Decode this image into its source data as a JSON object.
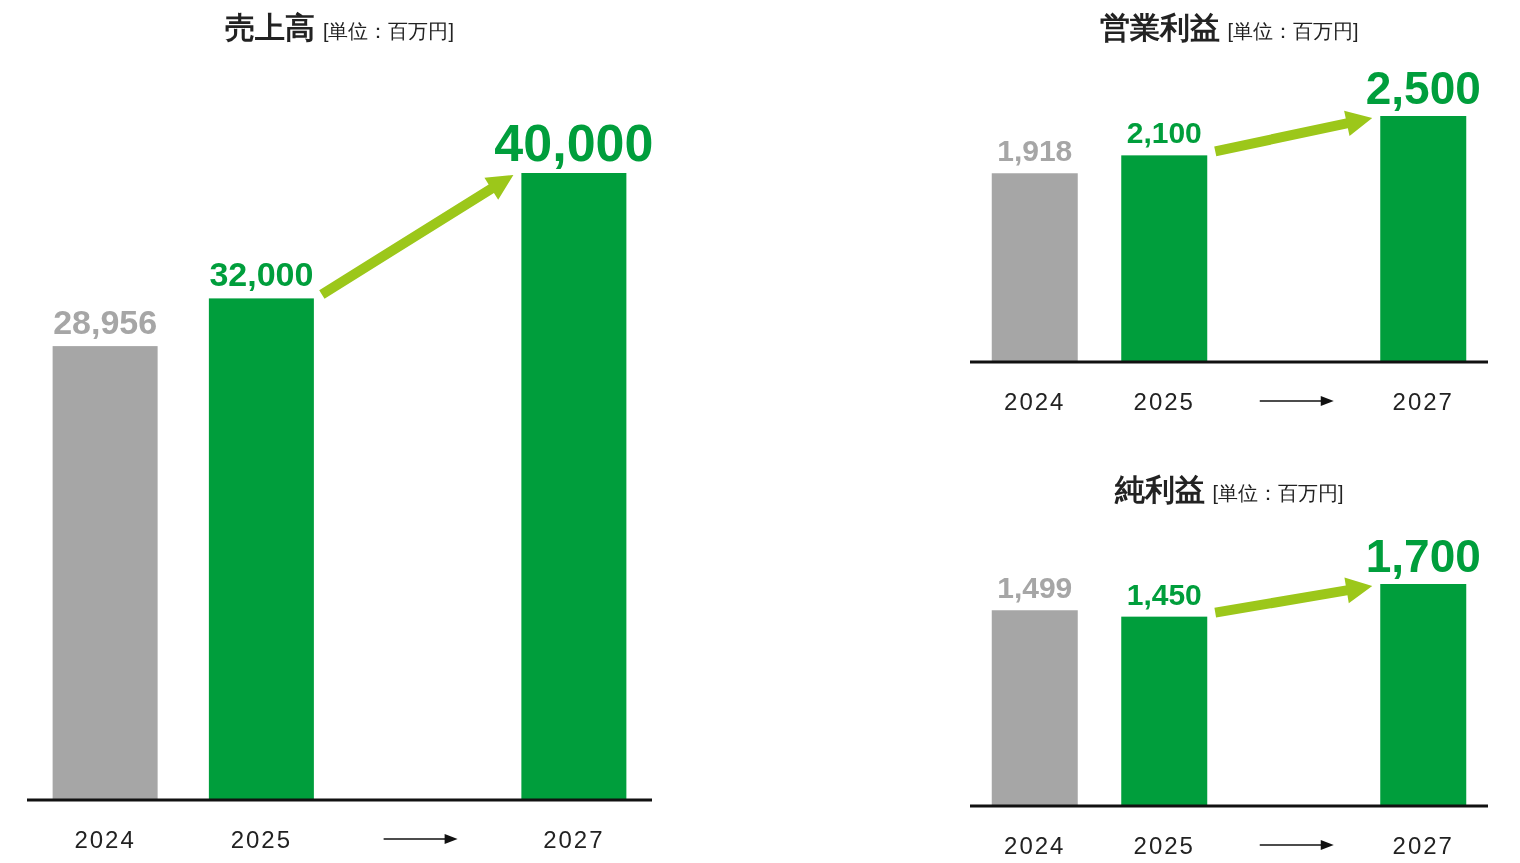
{
  "chart_data": [
    {
      "type": "bar",
      "title": "売上高",
      "subtitle": "[単位：百万円]",
      "categories": [
        "2024",
        "2025",
        null,
        "2027"
      ],
      "values": [
        28956,
        32000,
        null,
        40000
      ],
      "colors": [
        "#a6a6a6",
        "#009e3c",
        null,
        "#009e3c"
      ],
      "value_labels": [
        "28,956",
        "32,000",
        null,
        "40,000"
      ]
    },
    {
      "type": "bar",
      "title": "営業利益",
      "subtitle": "[単位：百万円]",
      "categories": [
        "2024",
        "2025",
        null,
        "2027"
      ],
      "values": [
        1918,
        2100,
        null,
        2500
      ],
      "colors": [
        "#a6a6a6",
        "#009e3c",
        null,
        "#009e3c"
      ],
      "value_labels": [
        "1,918",
        "2,100",
        null,
        "2,500"
      ]
    },
    {
      "type": "bar",
      "title": "純利益",
      "subtitle": "[単位：百万円]",
      "categories": [
        "2024",
        "2025",
        null,
        "2027"
      ],
      "values": [
        1499,
        1450,
        null,
        1700
      ],
      "colors": [
        "#a6a6a6",
        "#009e3c",
        null,
        "#009e3c"
      ],
      "value_labels": [
        "1,499",
        "1,450",
        null,
        "1,700"
      ]
    }
  ]
}
